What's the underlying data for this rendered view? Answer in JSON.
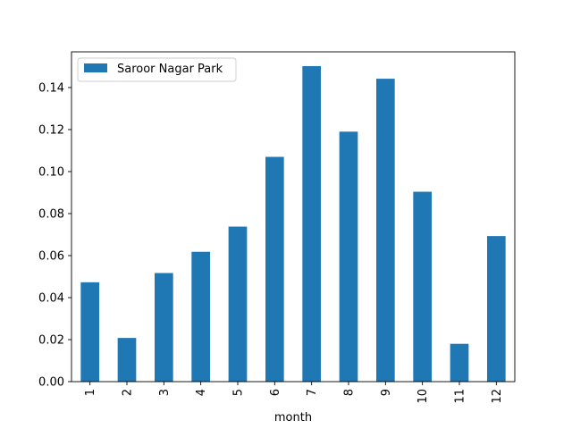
{
  "chart_data": {
    "type": "bar",
    "categories": [
      "1",
      "2",
      "3",
      "4",
      "5",
      "6",
      "7",
      "8",
      "9",
      "10",
      "11",
      "12"
    ],
    "series": [
      {
        "name": "Saroor Nagar Park",
        "values": [
          0.0473,
          0.0208,
          0.0517,
          0.0618,
          0.0738,
          0.107,
          0.1502,
          0.119,
          0.1442,
          0.0904,
          0.018,
          0.0693
        ],
        "color": "#1f77b4"
      }
    ],
    "title": "",
    "xlabel": "month",
    "ylabel": "",
    "ylim": [
      0,
      0.157
    ],
    "yticks": [
      0.0,
      0.02,
      0.04,
      0.06,
      0.08,
      0.1,
      0.12,
      0.14
    ],
    "ytick_labels": [
      "0.00",
      "0.02",
      "0.04",
      "0.06",
      "0.08",
      "0.10",
      "0.12",
      "0.14"
    ],
    "xtick_rotation": "vertical",
    "grid": false,
    "legend_position": "top-left"
  }
}
